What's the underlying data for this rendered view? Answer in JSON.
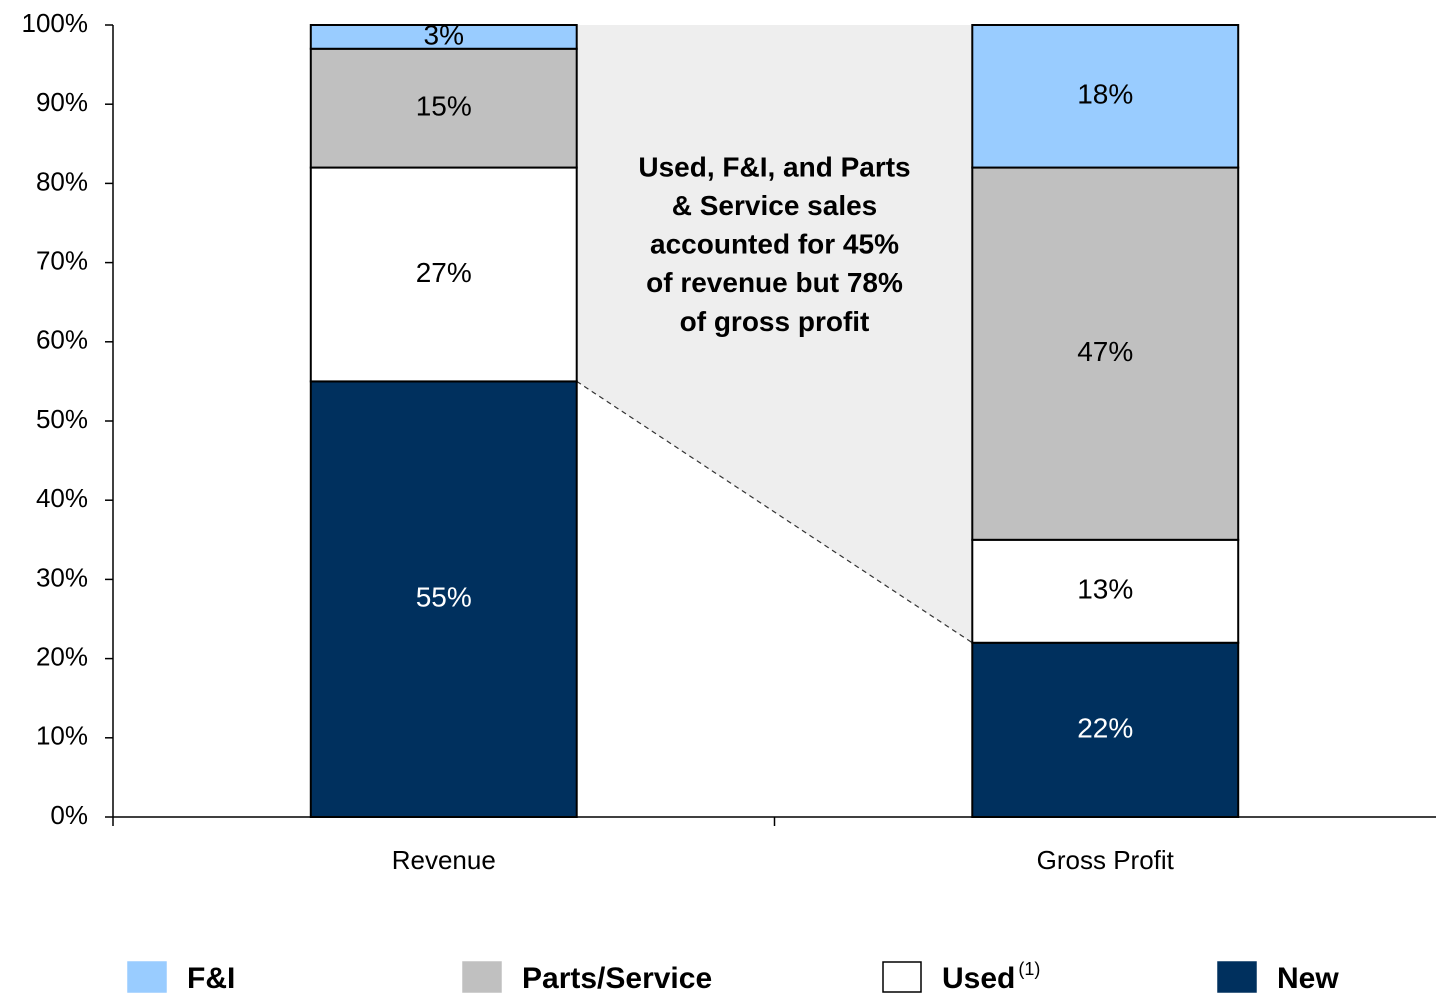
{
  "chart_data": {
    "type": "stacked_bar",
    "categories": [
      "Revenue",
      "Gross Profit"
    ],
    "series": [
      {
        "name": "New",
        "color": "#00305e",
        "values": [
          55,
          22
        ],
        "value_labels": [
          "55%",
          "22%"
        ]
      },
      {
        "name": "Used",
        "footnote_mark": "(1)",
        "color": "#ffffff",
        "values": [
          27,
          13
        ],
        "value_labels": [
          "27%",
          "13%"
        ]
      },
      {
        "name": "Parts/Service",
        "color": "#c0c0c0",
        "values": [
          15,
          47
        ],
        "value_labels": [
          "15%",
          "47%"
        ]
      },
      {
        "name": "F&I",
        "color": "#99ccff",
        "values": [
          3,
          18
        ],
        "value_labels": [
          "3%",
          "18%"
        ]
      }
    ],
    "ylim": [
      0,
      100
    ],
    "yticks": [
      {
        "value": 0,
        "label": "0%"
      },
      {
        "value": 10,
        "label": "10%"
      },
      {
        "value": 20,
        "label": "20%"
      },
      {
        "value": 30,
        "label": "30%"
      },
      {
        "value": 40,
        "label": "40%"
      },
      {
        "value": 50,
        "label": "50%"
      },
      {
        "value": 60,
        "label": "60%"
      },
      {
        "value": 70,
        "label": "70%"
      },
      {
        "value": 80,
        "label": "80%"
      },
      {
        "value": 90,
        "label": "90%"
      },
      {
        "value": 100,
        "label": "100%"
      }
    ],
    "annotation": [
      "Used, F&I, and Parts",
      "& Service sales",
      "accounted for 45%",
      "of revenue but 78%",
      "of gross profit"
    ],
    "legend_position": "bottom"
  }
}
